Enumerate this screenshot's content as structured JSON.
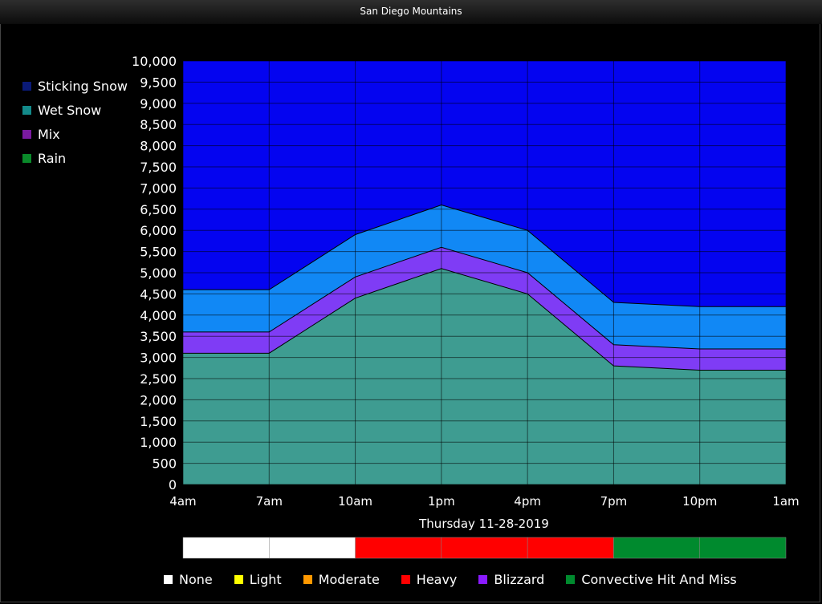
{
  "title": "San Diego Mountains",
  "legend": [
    {
      "label": "Sticking Snow",
      "color": "#0a1a78"
    },
    {
      "label": "Wet Snow",
      "color": "#138a8a"
    },
    {
      "label": "Mix",
      "color": "#7a1aa0"
    },
    {
      "label": "Rain",
      "color": "#0a8a2a"
    }
  ],
  "chart_data": {
    "type": "area",
    "x": [
      "4am",
      "7am",
      "10am",
      "1pm",
      "4pm",
      "7pm",
      "10pm",
      "1am"
    ],
    "ylim": [
      0,
      10000
    ],
    "yticks": [
      "0",
      "500",
      "1,000",
      "1,500",
      "2,000",
      "2,500",
      "3,000",
      "3,500",
      "4,000",
      "4,500",
      "5,000",
      "5,500",
      "6,000",
      "6,500",
      "7,000",
      "7,500",
      "8,000",
      "8,500",
      "9,000",
      "9,500",
      "10,000"
    ],
    "grid": true,
    "legend_position": "left",
    "series": [
      {
        "name": "Rain",
        "color": "#3e9c91",
        "values": [
          3100,
          3100,
          4400,
          5100,
          4500,
          2800,
          2700,
          2700
        ]
      },
      {
        "name": "Mix",
        "color": "#7f3cf5",
        "values": [
          3600,
          3600,
          4900,
          5600,
          5000,
          3300,
          3200,
          3200
        ]
      },
      {
        "name": "Wet Snow",
        "color": "#1188f5",
        "values": [
          4600,
          4600,
          5900,
          6600,
          6000,
          4300,
          4200,
          4200
        ]
      },
      {
        "name": "Sticking Snow",
        "color": "#0404f0",
        "values": [
          10000,
          10000,
          10000,
          10000,
          10000,
          10000,
          10000,
          10000
        ]
      }
    ]
  },
  "date_label": "Thursday 11-28-2019",
  "intensity_bar": [
    "#ffffff",
    "#ffffff",
    "#ff0000",
    "#ff0000",
    "#ff0000",
    "#008a2e",
    "#008a2e"
  ],
  "intensity_legend": [
    {
      "label": "None",
      "color": "#ffffff"
    },
    {
      "label": "Light",
      "color": "#ffff00"
    },
    {
      "label": "Moderate",
      "color": "#ff9900"
    },
    {
      "label": "Heavy",
      "color": "#ff0000"
    },
    {
      "label": "Blizzard",
      "color": "#8a1aff"
    },
    {
      "label": "Convective Hit And Miss",
      "color": "#008a2e"
    }
  ]
}
